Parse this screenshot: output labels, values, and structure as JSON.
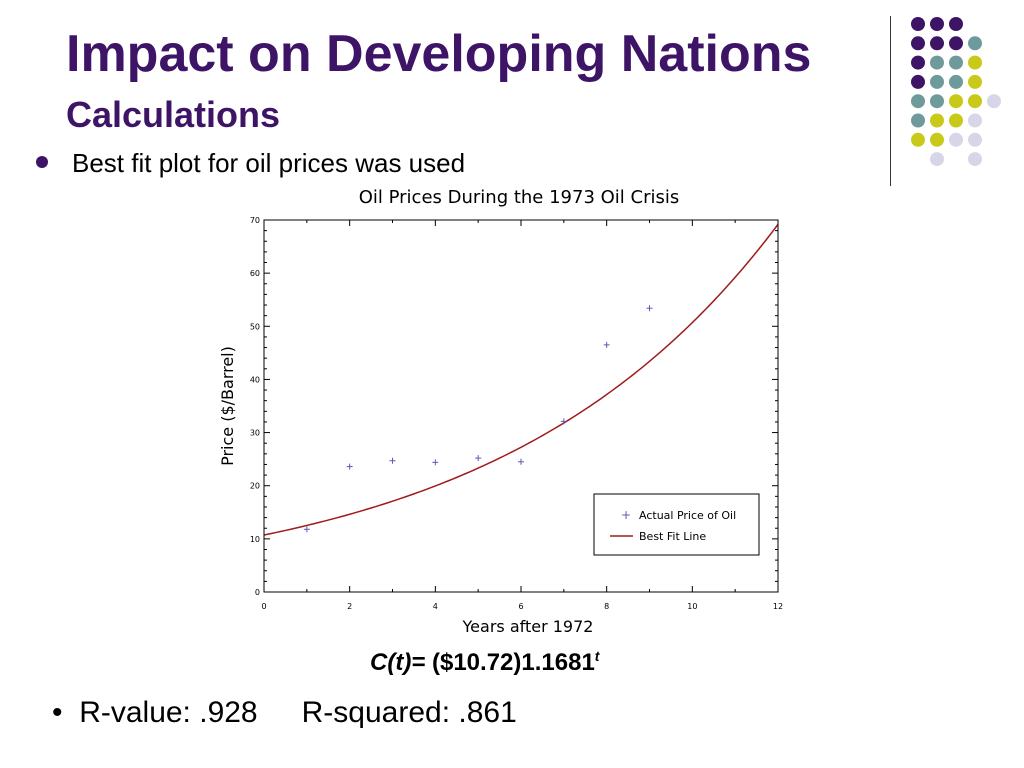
{
  "slide": {
    "title": "Impact on Developing Nations",
    "subtitle": "Calculations",
    "bullet1": "Best fit plot for oil prices was used",
    "formula_lhs": "C(t)=",
    "formula_rhs": " ($10.72)1.1681",
    "formula_exp": "t",
    "bullet2_prefix": "•",
    "r_value": "R-value: .928",
    "r_squared": "R-squared: .861"
  },
  "colors": {
    "title": "#3d1466",
    "dark_purple": "#3d1466",
    "teal": "#6f9a9c",
    "yellow_green": "#c9c91a",
    "lavender": "#d6d6e8",
    "fit_line": "#a01b1b",
    "points": "#5b5bb5"
  },
  "chart_data": {
    "type": "scatter",
    "title": "Oil Prices During the 1973 Oil Crisis",
    "xlabel": "Years after 1972",
    "ylabel": "Price ($/Barrel)",
    "xlim": [
      0,
      12
    ],
    "ylim": [
      0,
      70
    ],
    "xticks": [
      0,
      2,
      4,
      6,
      8,
      10,
      12
    ],
    "yticks": [
      0,
      10,
      20,
      30,
      40,
      50,
      60,
      70
    ],
    "grid": false,
    "legend_position": "bottom-right",
    "series": [
      {
        "name": "Actual Price of Oil",
        "kind": "points",
        "marker": "+",
        "color": "#5b5bb5",
        "x": [
          1,
          2,
          3,
          4,
          5,
          6,
          7,
          8,
          9
        ],
        "y": [
          11.8,
          23.6,
          24.7,
          24.4,
          25.2,
          24.5,
          32.1,
          46.5,
          53.4
        ]
      },
      {
        "name": "Best Fit Line",
        "kind": "curve",
        "color": "#a01b1b",
        "a": 10.72,
        "b": 1.1681
      }
    ]
  }
}
